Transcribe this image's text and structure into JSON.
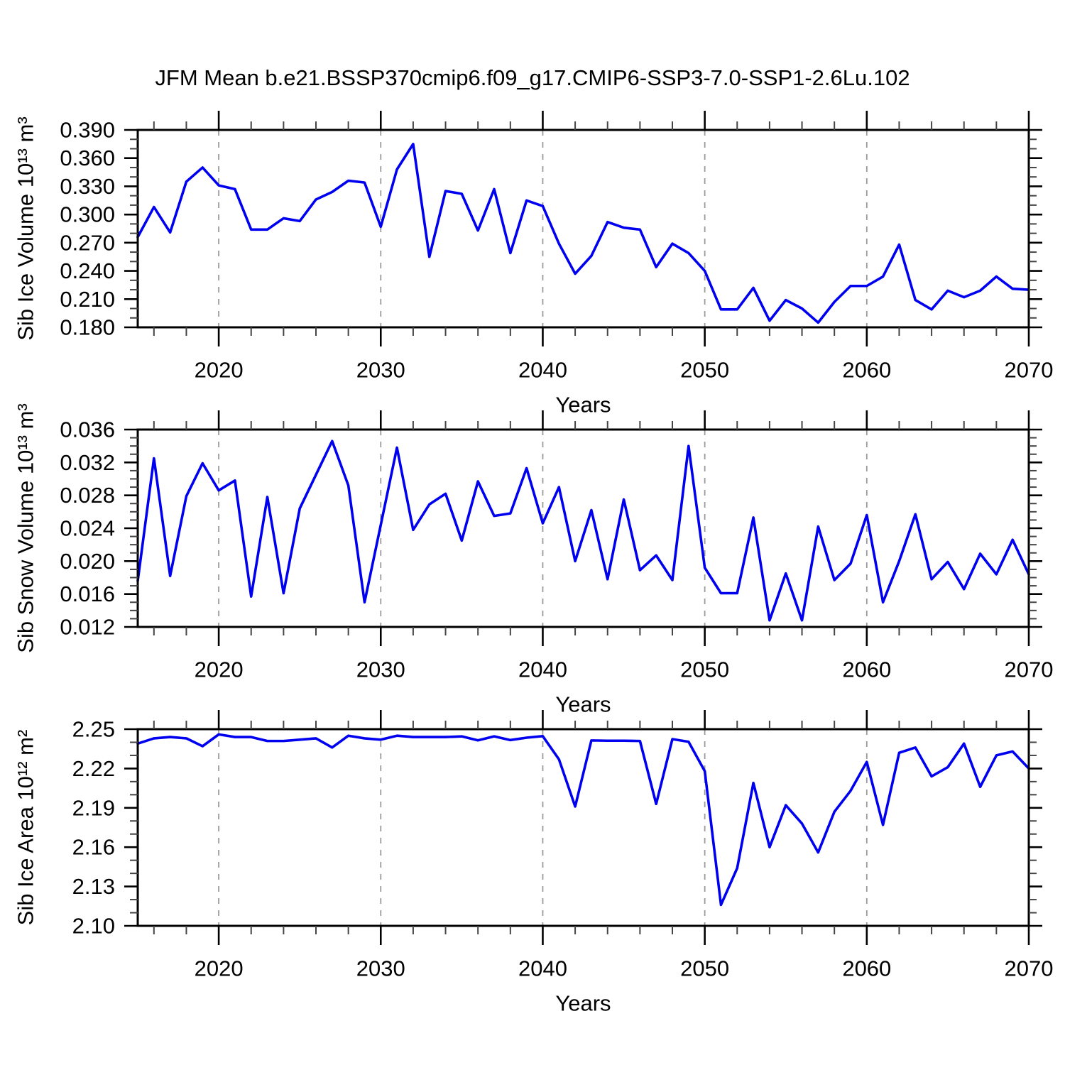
{
  "title": "JFM Mean b.e21.BSSP370cmip6.f09_g17.CMIP6-SSP3-7.0-SSP1-2.6Lu.102",
  "style": {
    "line_color": "#0000F0",
    "grid_color": "#9A9A9A",
    "axis_color": "#000000",
    "background": "#FFFFFF"
  },
  "years": [
    2015,
    2016,
    2017,
    2018,
    2019,
    2020,
    2021,
    2022,
    2023,
    2024,
    2025,
    2026,
    2027,
    2028,
    2029,
    2030,
    2031,
    2032,
    2033,
    2034,
    2035,
    2036,
    2037,
    2038,
    2039,
    2040,
    2041,
    2042,
    2043,
    2044,
    2045,
    2046,
    2047,
    2048,
    2049,
    2050,
    2051,
    2052,
    2053,
    2054,
    2055,
    2056,
    2057,
    2058,
    2059,
    2060,
    2061,
    2062,
    2063,
    2064,
    2065,
    2066,
    2067,
    2068,
    2069,
    2070
  ],
  "x_axis": {
    "label": "Years",
    "tick_values": [
      2020,
      2030,
      2040,
      2050,
      2060,
      2070
    ],
    "tick_labels": [
      "2020",
      "2030",
      "2040",
      "2050",
      "2060",
      "2070"
    ],
    "minor_step": 2,
    "grid_years": [
      2020,
      2030,
      2040,
      2050,
      2060
    ],
    "xlim": [
      2015,
      2070
    ]
  },
  "chart_data": [
    {
      "id": "sib-ice-volume",
      "type": "line",
      "ylabel": "Sib Ice Volume 10¹³ m³",
      "xlabel": "Years",
      "ylim": [
        0.18,
        0.39
      ],
      "ytick_values": [
        0.18,
        0.21,
        0.24,
        0.27,
        0.3,
        0.33,
        0.36,
        0.39
      ],
      "ytick_labels": [
        "0.180",
        "0.210",
        "0.240",
        "0.270",
        "0.300",
        "0.330",
        "0.360",
        "0.390"
      ],
      "yminor_step": 0.01,
      "grid": true,
      "values": [
        0.276,
        0.308,
        0.281,
        0.335,
        0.35,
        0.331,
        0.327,
        0.284,
        0.284,
        0.296,
        0.293,
        0.316,
        0.324,
        0.336,
        0.334,
        0.287,
        0.348,
        0.375,
        0.255,
        0.325,
        0.322,
        0.283,
        0.327,
        0.259,
        0.315,
        0.309,
        0.269,
        0.237,
        0.256,
        0.292,
        0.286,
        0.284,
        0.244,
        0.269,
        0.259,
        0.24,
        0.199,
        0.199,
        0.222,
        0.187,
        0.209,
        0.2,
        0.185,
        0.207,
        0.224,
        0.224,
        0.234,
        0.268,
        0.209,
        0.199,
        0.219,
        0.212,
        0.219,
        0.234,
        0.221,
        0.22
      ]
    },
    {
      "id": "sib-snow-volume",
      "type": "line",
      "ylabel": "Sib Snow Volume 10¹³ m³",
      "xlabel": "Years",
      "ylim": [
        0.012,
        0.036
      ],
      "ytick_values": [
        0.012,
        0.016,
        0.02,
        0.024,
        0.028,
        0.032,
        0.036
      ],
      "ytick_labels": [
        "0.012",
        "0.016",
        "0.020",
        "0.024",
        "0.028",
        "0.032",
        "0.036"
      ],
      "yminor_step": 0.001,
      "grid": true,
      "values": [
        0.0176,
        0.0325,
        0.0182,
        0.0279,
        0.0319,
        0.0286,
        0.0298,
        0.0157,
        0.0278,
        0.0161,
        0.0264,
        0.0305,
        0.0346,
        0.0292,
        0.015,
        0.0244,
        0.0338,
        0.0238,
        0.0269,
        0.0282,
        0.0225,
        0.0297,
        0.0255,
        0.0258,
        0.0313,
        0.0246,
        0.029,
        0.02,
        0.0262,
        0.0178,
        0.0275,
        0.0189,
        0.0207,
        0.0177,
        0.034,
        0.0192,
        0.0161,
        0.0161,
        0.0253,
        0.0128,
        0.0185,
        0.0128,
        0.0242,
        0.0177,
        0.0197,
        0.0256,
        0.015,
        0.02,
        0.0257,
        0.0178,
        0.0199,
        0.0166,
        0.0209,
        0.0184,
        0.0226,
        0.0184
      ]
    },
    {
      "id": "sib-ice-area",
      "type": "line",
      "ylabel": "Sib Ice Area 10¹² m²",
      "xlabel": "Years",
      "ylim": [
        2.1,
        2.25
      ],
      "ytick_values": [
        2.1,
        2.13,
        2.16,
        2.19,
        2.22,
        2.25
      ],
      "ytick_labels": [
        "2.10",
        "2.13",
        "2.16",
        "2.19",
        "2.22",
        "2.25"
      ],
      "yminor_step": 0.01,
      "grid": true,
      "values": [
        2.239,
        2.243,
        2.244,
        2.243,
        2.237,
        2.246,
        2.244,
        2.244,
        2.241,
        2.241,
        2.242,
        2.243,
        2.236,
        2.245,
        2.243,
        2.242,
        2.245,
        2.244,
        2.244,
        2.244,
        2.2445,
        2.2415,
        2.2445,
        2.2417,
        2.2435,
        2.2447,
        2.227,
        2.191,
        2.2414,
        2.2412,
        2.2412,
        2.241,
        2.193,
        2.2424,
        2.2404,
        2.218,
        2.116,
        2.144,
        2.209,
        2.16,
        2.192,
        2.178,
        2.156,
        2.187,
        2.203,
        2.225,
        2.177,
        2.232,
        2.236,
        2.214,
        2.221,
        2.239,
        2.206,
        2.23,
        2.233,
        2.22
      ]
    }
  ]
}
